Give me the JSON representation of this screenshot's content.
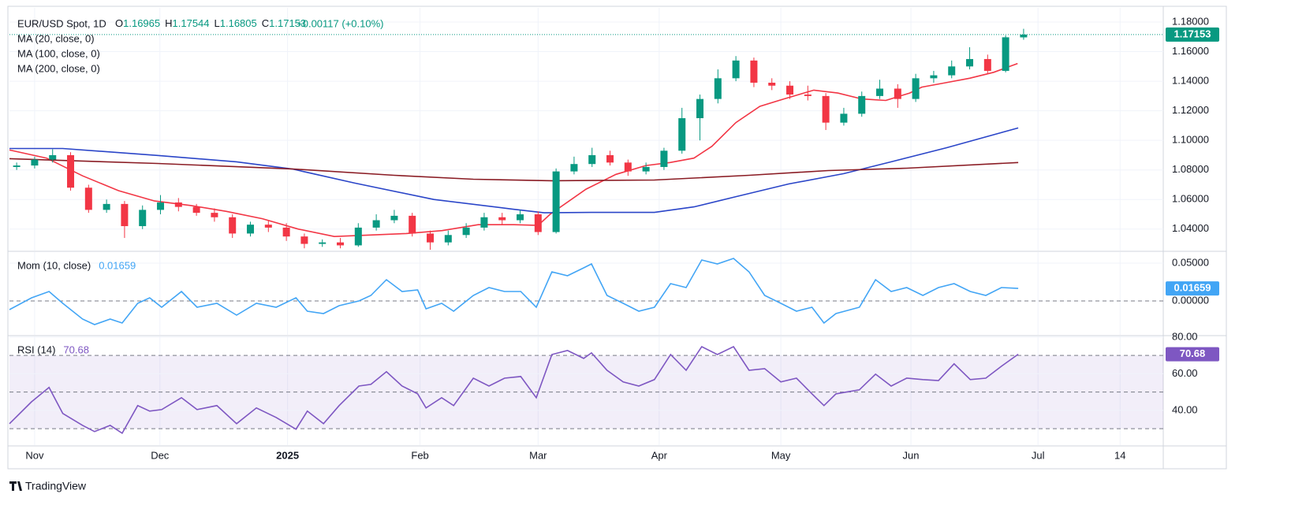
{
  "header": {
    "symbol": "EUR/USD Spot, 1D",
    "ohlc_prefixes": [
      "O",
      "H",
      "L",
      "C"
    ],
    "change": "+0.00117 (+0.10%)"
  },
  "branding": "TradingView",
  "chart_data": [
    {
      "type": "candlestick",
      "xlim": [
        -4.2,
        188.3
      ],
      "xticks": [
        {
          "value": 0,
          "label": "Nov"
        },
        {
          "value": 20.9,
          "label": "Dec"
        },
        {
          "value": 42.2,
          "label": "2025"
        },
        {
          "value": 64.3,
          "label": "Feb"
        },
        {
          "value": 84,
          "label": "Mar"
        },
        {
          "value": 104.2,
          "label": "Apr"
        },
        {
          "value": 124.5,
          "label": "May"
        },
        {
          "value": 146.2,
          "label": "Jun"
        },
        {
          "value": 167.4,
          "label": "Jul"
        },
        {
          "value": 181.1,
          "label": "14"
        }
      ],
      "ylim": [
        1.0255,
        1.1896
      ],
      "yticks": [
        {
          "value": 1.18,
          "label": "1.18000"
        },
        {
          "value": 1.16,
          "label": "1.16000"
        },
        {
          "value": 1.14,
          "label": "1.14000"
        },
        {
          "value": 1.12,
          "label": "1.12000"
        },
        {
          "value": 1.1,
          "label": "1.10000"
        },
        {
          "value": 1.08,
          "label": "1.08000"
        },
        {
          "value": 1.06,
          "label": "1.06000"
        },
        {
          "value": 1.04,
          "label": "1.04000"
        }
      ],
      "up_color": "#089981",
      "down_color": "#f23645",
      "last_price_line": true,
      "x": [
        -3,
        0,
        3,
        6,
        9,
        12,
        15,
        18,
        21,
        24,
        27,
        30,
        33,
        36,
        39,
        42,
        45,
        48,
        51,
        54,
        57,
        60,
        63,
        66,
        69,
        72,
        75,
        78,
        81,
        84,
        87,
        90,
        93,
        96,
        99,
        102,
        105,
        108,
        111,
        114,
        117,
        120,
        123,
        126,
        129,
        132,
        135,
        138,
        141,
        144,
        147,
        150,
        153,
        156,
        159,
        162,
        165
      ],
      "open": [
        1.082,
        1.083,
        1.087,
        1.09,
        1.068,
        1.053,
        1.057,
        1.042,
        1.053,
        1.058,
        1.055,
        1.051,
        1.048,
        1.037,
        1.043,
        1.041,
        1.035,
        1.03,
        1.031,
        1.029,
        1.041,
        1.046,
        1.049,
        1.037,
        1.031,
        1.036,
        1.041,
        1.048,
        1.046,
        1.05,
        1.038,
        1.079,
        1.084,
        1.09,
        1.085,
        1.079,
        1.082,
        1.093,
        1.115,
        1.128,
        1.142,
        1.154,
        1.139,
        1.137,
        1.131,
        1.13,
        1.112,
        1.118,
        1.13,
        1.135,
        1.128,
        1.142,
        1.144,
        1.15,
        1.155,
        1.147,
        1.16965
      ],
      "high": [
        1.085,
        1.089,
        1.094,
        1.092,
        1.07,
        1.06,
        1.059,
        1.056,
        1.063,
        1.061,
        1.057,
        1.054,
        1.05,
        1.045,
        1.046,
        1.044,
        1.037,
        1.033,
        1.034,
        1.044,
        1.05,
        1.053,
        1.051,
        1.039,
        1.039,
        1.044,
        1.051,
        1.051,
        1.053,
        1.052,
        1.081,
        1.089,
        1.095,
        1.093,
        1.087,
        1.085,
        1.095,
        1.122,
        1.131,
        1.148,
        1.157,
        1.156,
        1.142,
        1.14,
        1.137,
        1.132,
        1.122,
        1.133,
        1.141,
        1.138,
        1.145,
        1.147,
        1.154,
        1.163,
        1.158,
        1.171,
        1.17544
      ],
      "low": [
        1.08,
        1.081,
        1.085,
        1.066,
        1.051,
        1.051,
        1.034,
        1.04,
        1.05,
        1.052,
        1.049,
        1.045,
        1.034,
        1.035,
        1.038,
        1.032,
        1.027,
        1.028,
        1.027,
        1.028,
        1.039,
        1.044,
        1.035,
        1.026,
        1.029,
        1.034,
        1.039,
        1.043,
        1.044,
        1.036,
        1.037,
        1.077,
        1.082,
        1.083,
        1.076,
        1.077,
        1.08,
        1.091,
        1.1,
        1.125,
        1.14,
        1.136,
        1.134,
        1.128,
        1.127,
        1.107,
        1.11,
        1.116,
        1.128,
        1.122,
        1.126,
        1.139,
        1.142,
        1.148,
        1.145,
        1.146,
        1.16805
      ],
      "close": [
        1.083,
        1.087,
        1.09,
        1.068,
        1.053,
        1.057,
        1.042,
        1.053,
        1.058,
        1.055,
        1.051,
        1.048,
        1.037,
        1.043,
        1.041,
        1.035,
        1.03,
        1.031,
        1.029,
        1.041,
        1.046,
        1.049,
        1.037,
        1.031,
        1.036,
        1.041,
        1.048,
        1.046,
        1.05,
        1.038,
        1.079,
        1.084,
        1.09,
        1.085,
        1.079,
        1.082,
        1.093,
        1.115,
        1.128,
        1.142,
        1.154,
        1.139,
        1.137,
        1.131,
        1.13,
        1.112,
        1.118,
        1.13,
        1.135,
        1.128,
        1.142,
        1.144,
        1.15,
        1.155,
        1.147,
        1.1697,
        1.17153
      ],
      "series": [
        {
          "name": "MA (20, close, 0)",
          "color": "#f23645",
          "x": [
            -4.2,
            2,
            8,
            14,
            20,
            26,
            32,
            38,
            44,
            50,
            56,
            62,
            68,
            74,
            80,
            84,
            86,
            92,
            97,
            102,
            106,
            110,
            113,
            117,
            121,
            125,
            130,
            134,
            138,
            142,
            146,
            148,
            152,
            156,
            160,
            164
          ],
          "values": [
            1.0935,
            1.088,
            1.076,
            1.066,
            1.059,
            1.056,
            1.052,
            1.047,
            1.04,
            1.035,
            1.036,
            1.037,
            1.039,
            1.043,
            1.043,
            1.0425,
            1.05,
            1.067,
            1.077,
            1.083,
            1.085,
            1.088,
            1.096,
            1.112,
            1.123,
            1.128,
            1.134,
            1.132,
            1.128,
            1.127,
            1.132,
            1.136,
            1.139,
            1.142,
            1.146,
            1.152
          ]
        },
        {
          "name": "MA (100, close, 0)",
          "color": "#2a45c8",
          "x": [
            -4.2,
            4.7,
            20.5,
            33.7,
            42.9,
            53.4,
            66.6,
            79.7,
            85,
            92.9,
            103.4,
            110,
            116.6,
            125.8,
            135,
            142.9,
            152.1,
            164.1
          ],
          "values": [
            1.0945,
            1.0945,
            1.0898,
            1.0855,
            1.0807,
            1.0711,
            1.06,
            1.0535,
            1.051,
            1.0513,
            1.0513,
            1.055,
            1.0615,
            1.0705,
            1.0775,
            1.0855,
            1.095,
            1.1084
          ]
        },
        {
          "name": "MA (200, close, 0)",
          "color": "#8a1c24",
          "x": [
            -4.2,
            20.5,
            42.9,
            60,
            73.2,
            86.3,
            103.4,
            119.2,
            132.4,
            145.5,
            164.1
          ],
          "values": [
            1.0876,
            1.0844,
            1.0807,
            1.0764,
            1.0737,
            1.0727,
            1.0732,
            1.0764,
            1.0796,
            1.0812,
            1.085
          ]
        }
      ]
    },
    {
      "type": "line",
      "ylim": [
        -0.0448,
        0.0646
      ],
      "yticks": [
        {
          "value": 0.05,
          "label": "0.05000"
        },
        {
          "value": 0,
          "label": "0.00000"
        }
      ],
      "levels": [
        0
      ],
      "series": [
        {
          "name": "Mom (10, close)",
          "color": "#42a5f5",
          "x": [
            -4.2,
            -0.5,
            2.4,
            4.7,
            8,
            10,
            12.6,
            14.6,
            17.2,
            19.2,
            21.2,
            24.5,
            27.1,
            30.4,
            33.7,
            37,
            40.3,
            43.6,
            45.5,
            48.2,
            50.8,
            54.1,
            56.1,
            58.7,
            61.3,
            63.9,
            65.3,
            67.9,
            69.9,
            73.2,
            75.8,
            78.4,
            81.1,
            83.7,
            86.3,
            88.9,
            91.6,
            92.9,
            95.5,
            98.2,
            100.8,
            103.4,
            106.1,
            108.7,
            111.3,
            113.9,
            116.6,
            119.2,
            121.8,
            124.5,
            127.1,
            129.7,
            131.7,
            133.7,
            137.6,
            140.3,
            142.9,
            145.5,
            148.2,
            150.8,
            153.4,
            156.1,
            158.7,
            161.3,
            164.1
          ],
          "values": [
            -0.0115,
            0.0042,
            0.0125,
            -0.0031,
            -0.024,
            -0.0313,
            -0.024,
            -0.0292,
            -0.0031,
            0.0042,
            -0.0083,
            0.0125,
            -0.0083,
            -0.0031,
            -0.0188,
            -0.0031,
            -0.0083,
            0.0042,
            -0.0135,
            -0.0167,
            -0.0063,
            0,
            0.0073,
            0.0281,
            0.0125,
            0.0146,
            -0.0104,
            -0.0031,
            -0.0135,
            0.0073,
            0.0177,
            0.0125,
            0.0125,
            -0.0083,
            0.0385,
            0.0333,
            0.0438,
            0.049,
            0.0073,
            -0.0031,
            -0.0135,
            -0.0083,
            0.0229,
            0.0177,
            0.0542,
            0.049,
            0.0563,
            0.0385,
            0.0073,
            -0.0031,
            -0.0135,
            -0.0083,
            -0.0292,
            -0.0167,
            -0.0083,
            0.0281,
            0.0125,
            0.0177,
            0.0073,
            0.0177,
            0.0229,
            0.0125,
            0.0073,
            0.0177,
            0.01659
          ]
        }
      ]
    },
    {
      "type": "line",
      "ylim": [
        21,
        80.4
      ],
      "yticks": [
        {
          "value": 80,
          "label": "80.00"
        },
        {
          "value": 60,
          "label": "60.00"
        },
        {
          "value": 40,
          "label": "40.00"
        }
      ],
      "levels": [
        30,
        50,
        70
      ],
      "band": [
        30,
        70
      ],
      "band_color": "rgba(126,87,194,0.1)",
      "series": [
        {
          "name": "RSI (14)",
          "color": "#7e57c2",
          "x": [
            -4.2,
            -0.5,
            2.4,
            4.7,
            8,
            10,
            12.6,
            14.6,
            17.2,
            19.2,
            21.2,
            24.5,
            27.1,
            30.4,
            33.7,
            37,
            40.3,
            43.6,
            45.5,
            48.2,
            50.8,
            54.1,
            56.1,
            58.7,
            61.3,
            63.9,
            65.3,
            67.9,
            69.9,
            73.2,
            75.8,
            78.4,
            81.1,
            83.7,
            86.3,
            88.9,
            91.6,
            92.9,
            95.5,
            98.2,
            100.8,
            103.4,
            106.1,
            108.7,
            111.3,
            113.9,
            116.6,
            119.2,
            121.8,
            124.5,
            127.1,
            129.7,
            131.7,
            133.7,
            137.6,
            140.3,
            142.9,
            145.5,
            148.2,
            150.8,
            153.4,
            156.1,
            158.7,
            161.3,
            164.1
          ],
          "values": [
            32.7,
            44.7,
            52.5,
            38.3,
            31.8,
            28.4,
            31.8,
            27.5,
            42.6,
            39.6,
            40.4,
            46.9,
            40.4,
            42.6,
            32.7,
            41.3,
            36.1,
            29.7,
            39.6,
            32.7,
            42.6,
            53.3,
            54.2,
            61.1,
            53.3,
            49,
            41.3,
            46.9,
            42.6,
            57.6,
            53.3,
            57.6,
            58.5,
            46.9,
            70.5,
            72.7,
            68.4,
            71.4,
            61.9,
            55.5,
            53.3,
            56.8,
            70.5,
            61.9,
            74.8,
            70.5,
            74.8,
            61.9,
            62.8,
            55.5,
            57.6,
            49,
            42.6,
            49,
            51.2,
            59.8,
            53.3,
            57.6,
            56.8,
            56.3,
            65.4,
            56.8,
            57.6,
            64.1,
            70.68
          ]
        }
      ]
    }
  ]
}
